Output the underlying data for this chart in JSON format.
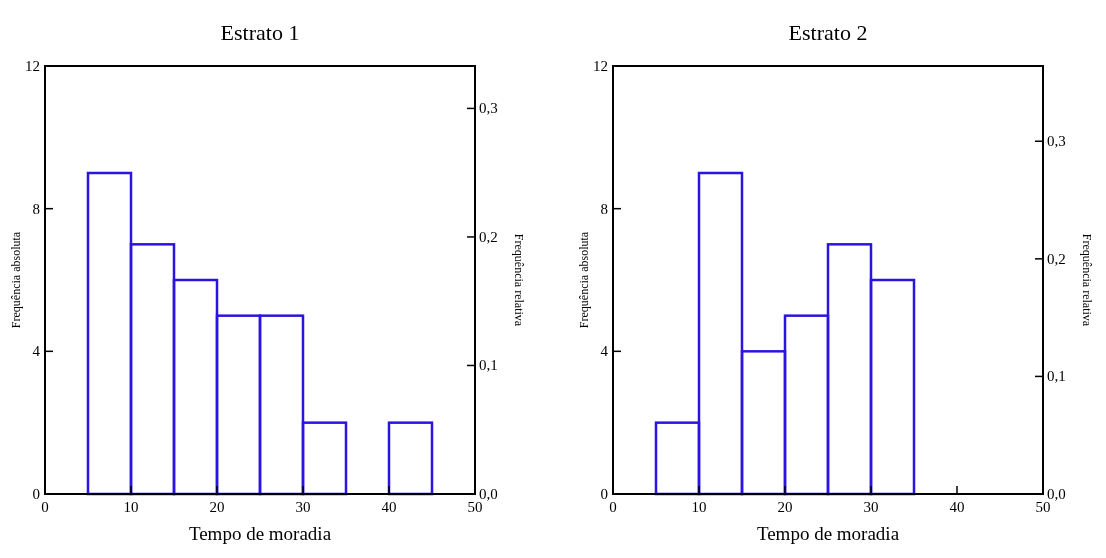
{
  "chart_data": [
    {
      "type": "histogram",
      "title": "Estrato 1",
      "xlabel": "Tempo de moradia",
      "ylabel": "Frequência absoluta",
      "y2label": "Frequência relativa",
      "bins": [
        0,
        5,
        10,
        15,
        20,
        25,
        30,
        35,
        40,
        45,
        50
      ],
      "values": [
        0,
        9,
        7,
        6,
        5,
        5,
        2,
        0,
        2,
        0
      ],
      "color": "#2b14e0",
      "xlim": [
        0,
        50
      ],
      "xticks": [
        0,
        10,
        20,
        30,
        40,
        50
      ],
      "ylim": [
        0,
        12
      ],
      "yticks": [
        0,
        4,
        8,
        12
      ],
      "y2lim": [
        0,
        0.333
      ],
      "y2ticks": [
        {
          "value": 0,
          "label": "0,0"
        },
        {
          "value": 0.1,
          "label": "0,1"
        },
        {
          "value": 0.2,
          "label": "0,2"
        },
        {
          "value": 0.3,
          "label": "0,3"
        }
      ],
      "grid": false
    },
    {
      "type": "histogram",
      "title": "Estrato 2",
      "xlabel": "Tempo de moradia",
      "ylabel": "Frequência absoluta",
      "y2label": "Frequência relativa",
      "bins": [
        0,
        5,
        10,
        15,
        20,
        25,
        30,
        35,
        40,
        45,
        50
      ],
      "values": [
        0,
        2,
        9,
        4,
        5,
        7,
        6,
        0,
        0,
        0
      ],
      "color": "#2b14e0",
      "xlim": [
        0,
        50
      ],
      "xticks": [
        0,
        10,
        20,
        30,
        40,
        50
      ],
      "ylim": [
        0,
        12
      ],
      "yticks": [
        0,
        4,
        8,
        12
      ],
      "y2lim": [
        0,
        0.364
      ],
      "y2ticks": [
        {
          "value": 0,
          "label": "0,0"
        },
        {
          "value": 0.1,
          "label": "0,1"
        },
        {
          "value": 0.2,
          "label": "0,2"
        },
        {
          "value": 0.3,
          "label": "0,3"
        }
      ],
      "grid": false
    }
  ]
}
